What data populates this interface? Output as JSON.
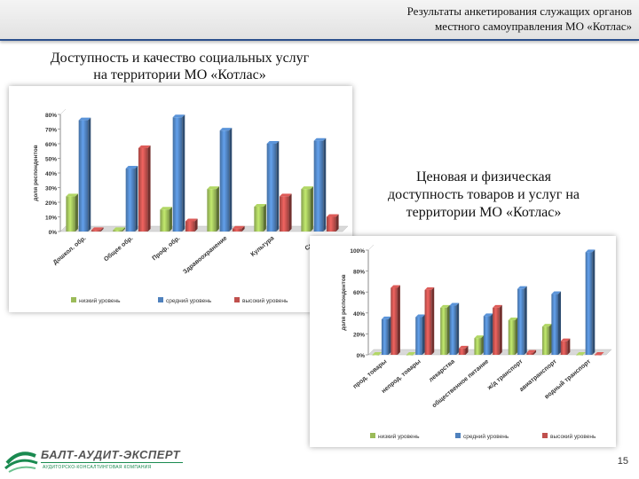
{
  "header": {
    "title": "Результаты анкетирования служащих органов\nместного самоуправления МО «Котлас»"
  },
  "left_chart_title": "Доступность и качество социальных услуг\nна территории МО «Котлас»",
  "right_chart_title": "Ценовая и физическая\nдоступность товаров и услуг на\nтерритории МО «Котлас»",
  "logo": {
    "name": "БАЛТ-АУДИТ-ЭКСПЕРТ",
    "tagline": "АУДИТОРСКО-КОНСАЛТИНГОВАЯ КОМПАНИЯ"
  },
  "page_number": "15",
  "colors": {
    "low": "#9bbb59",
    "mid": "#4f81bd",
    "high": "#c0504d"
  },
  "chart_data": [
    {
      "type": "bar",
      "ylabel": "доля респондентов",
      "ylim": [
        0,
        80
      ],
      "yticks": [
        "0%",
        "10%",
        "20%",
        "30%",
        "40%",
        "50%",
        "60%",
        "70%",
        "80%"
      ],
      "categories": [
        "Дошкол. обр.",
        "Общее обр.",
        "Проф. обр.",
        "Здравоохранение",
        "Культура",
        "Спорт"
      ],
      "series": [
        {
          "name": "низкий уровень",
          "values": [
            24,
            1,
            15,
            29,
            17,
            29
          ]
        },
        {
          "name": "средний уровень",
          "values": [
            76,
            43,
            78,
            69,
            60,
            62
          ]
        },
        {
          "name": "высокий уровень",
          "values": [
            1,
            57,
            7,
            2,
            24,
            10
          ]
        }
      ],
      "legend": "bottom",
      "grid": false
    },
    {
      "type": "bar",
      "ylabel": "доля респондентов",
      "ylim": [
        0,
        100
      ],
      "yticks": [
        "0%",
        "20%",
        "40%",
        "60%",
        "80%",
        "100%"
      ],
      "categories": [
        "прод. товары",
        "непрод. товары",
        "лекарства",
        "общественное питание",
        "ж/д транспорт",
        "авиатранспорт",
        "водный транспорт"
      ],
      "series": [
        {
          "name": "низкий уровень",
          "values": [
            0,
            0,
            45,
            16,
            33,
            27,
            0
          ]
        },
        {
          "name": "средний уровень",
          "values": [
            34,
            36,
            47,
            37,
            63,
            58,
            98
          ]
        },
        {
          "name": "высокий уровень",
          "values": [
            64,
            62,
            6,
            45,
            2,
            13,
            0
          ]
        }
      ],
      "legend": "bottom",
      "grid": false
    }
  ]
}
